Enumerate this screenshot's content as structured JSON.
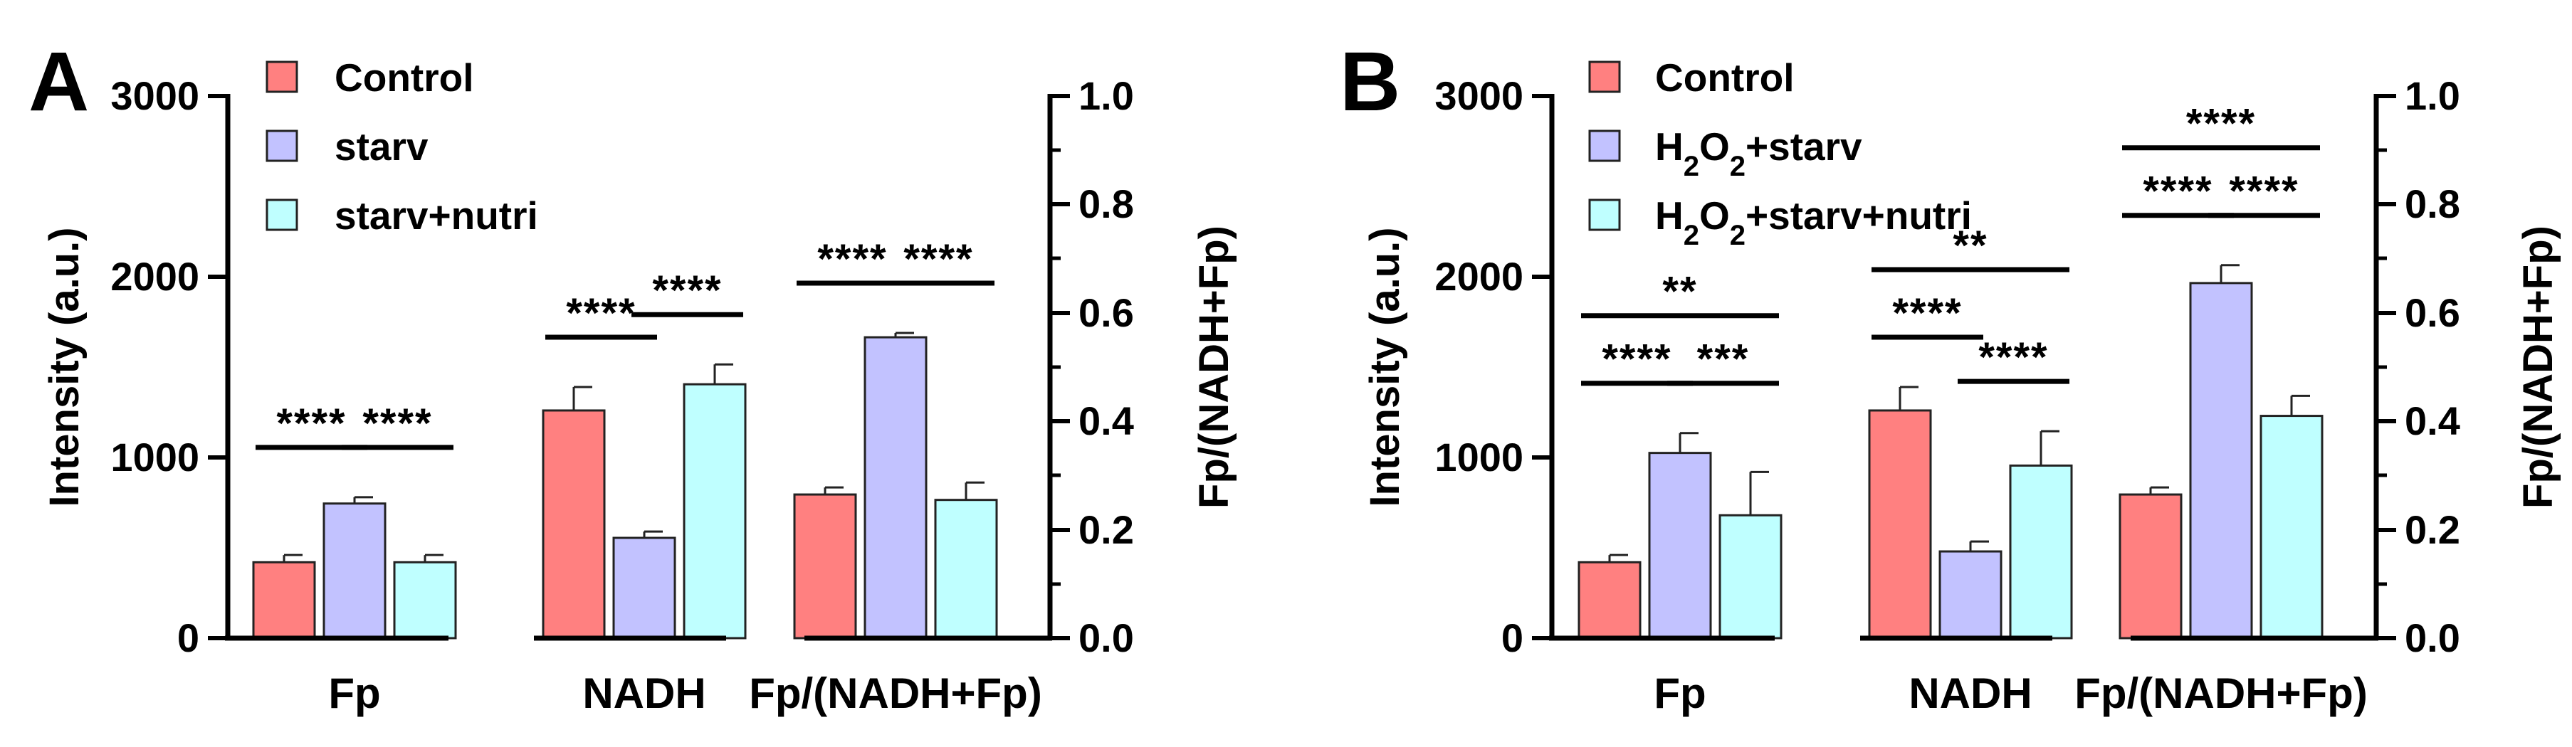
{
  "chart_data": [
    {
      "panel": "A",
      "type": "bar",
      "categories": [
        "Fp",
        "NADH",
        "Fp/(NADH+Fp)"
      ],
      "ylabel": "Intensity (a.u.)",
      "ylim": [
        0,
        3000
      ],
      "yticks": [
        "0",
        "1000",
        "2000",
        "3000"
      ],
      "y2label": "Fp/(NADH+Fp)",
      "y2lim": [
        0,
        1.0
      ],
      "y2ticks": [
        "0.0",
        "0.2",
        "0.4",
        "0.6",
        "0.8",
        "1.0"
      ],
      "legend": [
        "Control",
        "starv",
        "starv+nutri"
      ],
      "series": [
        {
          "name": "Control",
          "color": "#ff8080",
          "values": [
            420,
            1260,
            0.265
          ],
          "errors": [
            40,
            130,
            0.013
          ]
        },
        {
          "name": "starv",
          "color": "#c2c2ff",
          "values": [
            745,
            555,
            0.555
          ],
          "errors": [
            35,
            35,
            0.008
          ]
        },
        {
          "name": "starv+nutri",
          "color": "#bfffff",
          "values": [
            420,
            1405,
            0.255
          ],
          "errors": [
            40,
            110,
            0.032
          ]
        }
      ],
      "significance": [
        {
          "group": 0,
          "from": 0,
          "to": 1,
          "label": "****"
        },
        {
          "group": 0,
          "from": 1,
          "to": 2,
          "label": "****"
        },
        {
          "group": 1,
          "from": 0,
          "to": 1,
          "label": "****"
        },
        {
          "group": 1,
          "from": 1,
          "to": 2,
          "label": "****"
        },
        {
          "group": 2,
          "from": 0,
          "to": 1,
          "label": "****"
        },
        {
          "group": 2,
          "from": 1,
          "to": 2,
          "label": "****"
        }
      ]
    },
    {
      "panel": "B",
      "type": "bar",
      "categories": [
        "Fp",
        "NADH",
        "Fp/(NADH+Fp)"
      ],
      "ylabel": "Intensity (a.u.)",
      "ylim": [
        0,
        3000
      ],
      "yticks": [
        "0",
        "1000",
        "2000",
        "3000"
      ],
      "y2label": "Fp/(NADH+Fp)",
      "y2lim": [
        0,
        1.0
      ],
      "y2ticks": [
        "0.0",
        "0.2",
        "0.4",
        "0.6",
        "0.8",
        "1.0"
      ],
      "legend": [
        "Control",
        "H2O2+starv",
        "H2O2+starv+nutri"
      ],
      "series": [
        {
          "name": "Control",
          "color": "#ff8080",
          "values": [
            420,
            1260,
            0.265
          ],
          "errors": [
            40,
            130,
            0.013
          ]
        },
        {
          "name": "H2O2+starv",
          "color": "#c2c2ff",
          "values": [
            1025,
            480,
            0.655
          ],
          "errors": [
            110,
            55,
            0.033
          ]
        },
        {
          "name": "H2O2+starv+nutri",
          "color": "#bfffff",
          "values": [
            680,
            955,
            0.41
          ],
          "errors": [
            240,
            190,
            0.037
          ]
        }
      ],
      "significance": [
        {
          "group": 0,
          "from": 0,
          "to": 1,
          "label": "****"
        },
        {
          "group": 0,
          "from": 1,
          "to": 2,
          "label": "***"
        },
        {
          "group": 0,
          "from": 0,
          "to": 2,
          "label": "**"
        },
        {
          "group": 1,
          "from": 0,
          "to": 1,
          "label": "****"
        },
        {
          "group": 1,
          "from": 1,
          "to": 2,
          "label": "****"
        },
        {
          "group": 1,
          "from": 0,
          "to": 2,
          "label": "**"
        },
        {
          "group": 2,
          "from": 0,
          "to": 1,
          "label": "****"
        },
        {
          "group": 2,
          "from": 1,
          "to": 2,
          "label": "****"
        },
        {
          "group": 2,
          "from": 0,
          "to": 2,
          "label": "****"
        }
      ]
    }
  ],
  "colors": {
    "axis": "#000000",
    "bar_edge": "#222222"
  }
}
